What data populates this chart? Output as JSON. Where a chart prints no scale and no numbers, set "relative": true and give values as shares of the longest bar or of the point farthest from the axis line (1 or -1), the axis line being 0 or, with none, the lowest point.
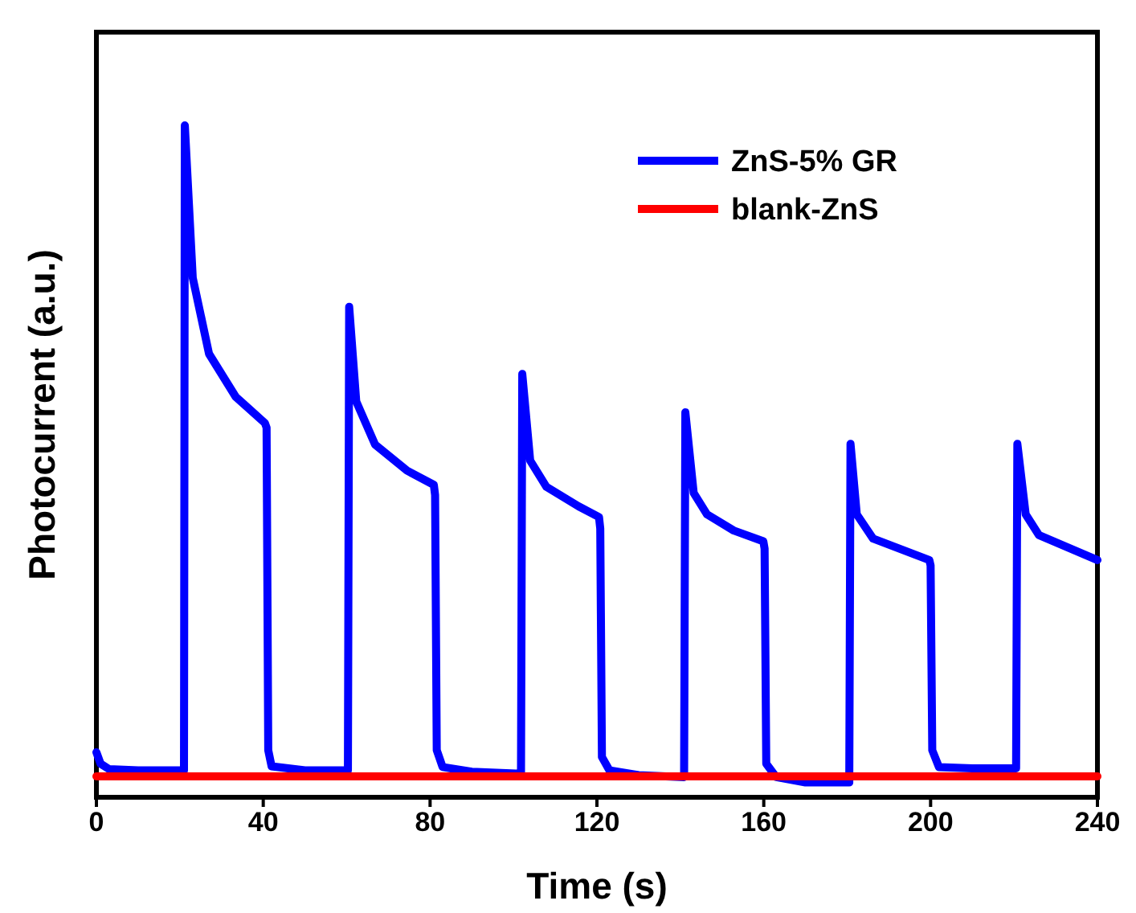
{
  "chart_data": {
    "type": "line",
    "xlabel": "Time (s)",
    "ylabel": "Photocurrent (a.u.)",
    "relative": true,
    "xlim": [
      0,
      240
    ],
    "xticks": [
      0,
      40,
      80,
      120,
      160,
      200,
      240
    ],
    "legend": "top right",
    "line_style": "solid",
    "marker": "none",
    "series": [
      {
        "name": "ZnS-5% GR",
        "color": "#0000ff",
        "x": [
          0,
          1,
          3,
          10,
          20,
          21,
          21.2,
          23.1,
          27,
          33.4,
          40.4,
          40.8,
          41.2,
          42,
          50,
          60.3,
          60.6,
          62.3,
          66.8,
          74.5,
          80.9,
          81.2,
          81.6,
          83,
          90,
          101.8,
          102.1,
          104,
          107.9,
          115.6,
          120.5,
          120.8,
          121.2,
          123,
          130,
          140.9,
          141.2,
          143.2,
          146.4,
          152.8,
          159.9,
          160.2,
          160.6,
          163,
          170,
          180.5,
          180.8,
          182.3,
          186.2,
          199.7,
          200,
          200.4,
          202,
          210,
          220.5,
          220.8,
          222.8,
          226,
          240
        ],
        "values": [
          0.067,
          0.05,
          0.042,
          0.04,
          0.04,
          0.04,
          1.0,
          0.773,
          0.66,
          0.596,
          0.557,
          0.55,
          0.07,
          0.046,
          0.04,
          0.04,
          0.73,
          0.589,
          0.525,
          0.486,
          0.465,
          0.45,
          0.07,
          0.045,
          0.038,
          0.035,
          0.63,
          0.501,
          0.462,
          0.433,
          0.417,
          0.4,
          0.06,
          0.04,
          0.033,
          0.03,
          0.573,
          0.453,
          0.421,
          0.397,
          0.381,
          0.37,
          0.05,
          0.03,
          0.022,
          0.022,
          0.526,
          0.421,
          0.385,
          0.353,
          0.345,
          0.07,
          0.045,
          0.043,
          0.043,
          0.526,
          0.421,
          0.39,
          0.353
        ]
      },
      {
        "name": "blank-ZnS",
        "color": "#ff0000",
        "x": [
          0,
          240
        ],
        "values": [
          0.031,
          0.031
        ]
      }
    ]
  }
}
